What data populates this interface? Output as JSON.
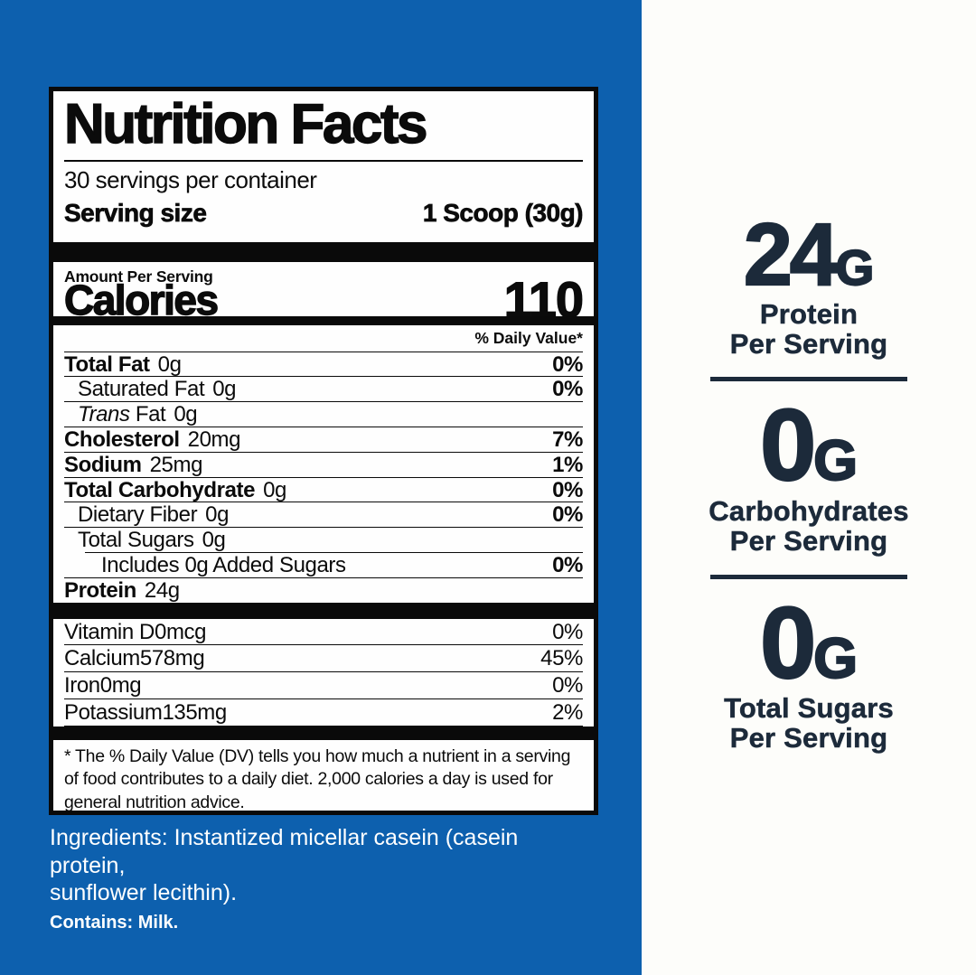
{
  "colors": {
    "panel_blue": "#0d60ae",
    "callout_navy": "#1c2a3a",
    "label_black": "#0a0a0a"
  },
  "label": {
    "title": "Nutrition Facts",
    "servings_per_container": "30 servings per container",
    "serving_size_label": "Serving size",
    "serving_size_value": "1 Scoop (30g)",
    "amount_per_serving": "Amount Per Serving",
    "calories_label": "Calories",
    "calories_value": "110",
    "daily_value_header": "% Daily Value*",
    "rows": [
      {
        "name": "Total Fat",
        "amount": "0g",
        "dv": "0%"
      },
      {
        "name": "Saturated Fat",
        "amount": "0g",
        "dv": "0%"
      },
      {
        "name_italic": "Trans",
        "name_rest": " Fat",
        "amount": "0g",
        "dv": ""
      },
      {
        "name": "Cholesterol",
        "amount": "20mg",
        "dv": "7%"
      },
      {
        "name": "Sodium",
        "amount": "25mg",
        "dv": "1%"
      },
      {
        "name": "Total Carbohydrate",
        "amount": "0g",
        "dv": "0%"
      },
      {
        "name": "Dietary Fiber",
        "amount": "0g",
        "dv": "0%"
      },
      {
        "name": "Total Sugars",
        "amount": "0g",
        "dv": ""
      },
      {
        "name": "Includes 0g Added Sugars",
        "amount": "",
        "dv": "0%"
      },
      {
        "name": "Protein",
        "amount": "24g",
        "dv": ""
      }
    ],
    "vitamins": [
      {
        "name": "Vitamin D",
        "amount": "0mcg",
        "dv": "0%"
      },
      {
        "name": "Calcium",
        "amount": "578mg",
        "dv": "45%"
      },
      {
        "name": "Iron",
        "amount": "0mg",
        "dv": "0%"
      },
      {
        "name": "Potassium",
        "amount": "135mg",
        "dv": "2%"
      }
    ],
    "footnote": "* The % Daily Value (DV) tells you how much a nutrient in a serving of food contributes to a daily diet. 2,000 calories a day is used for general nutrition advice."
  },
  "ingredients": {
    "line1": "Ingredients: Instantized micellar casein (casein protein,",
    "line2": "sunflower lecithin).",
    "contains": "Contains: Milk."
  },
  "callouts": [
    {
      "value": "24",
      "unit": "G",
      "line1": "Protein",
      "line2": "Per Serving"
    },
    {
      "value": "0",
      "unit": "G",
      "line1": "Carbohydrates",
      "line2": "Per Serving"
    },
    {
      "value": "0",
      "unit": "G",
      "line1": "Total Sugars",
      "line2": "Per Serving"
    }
  ]
}
